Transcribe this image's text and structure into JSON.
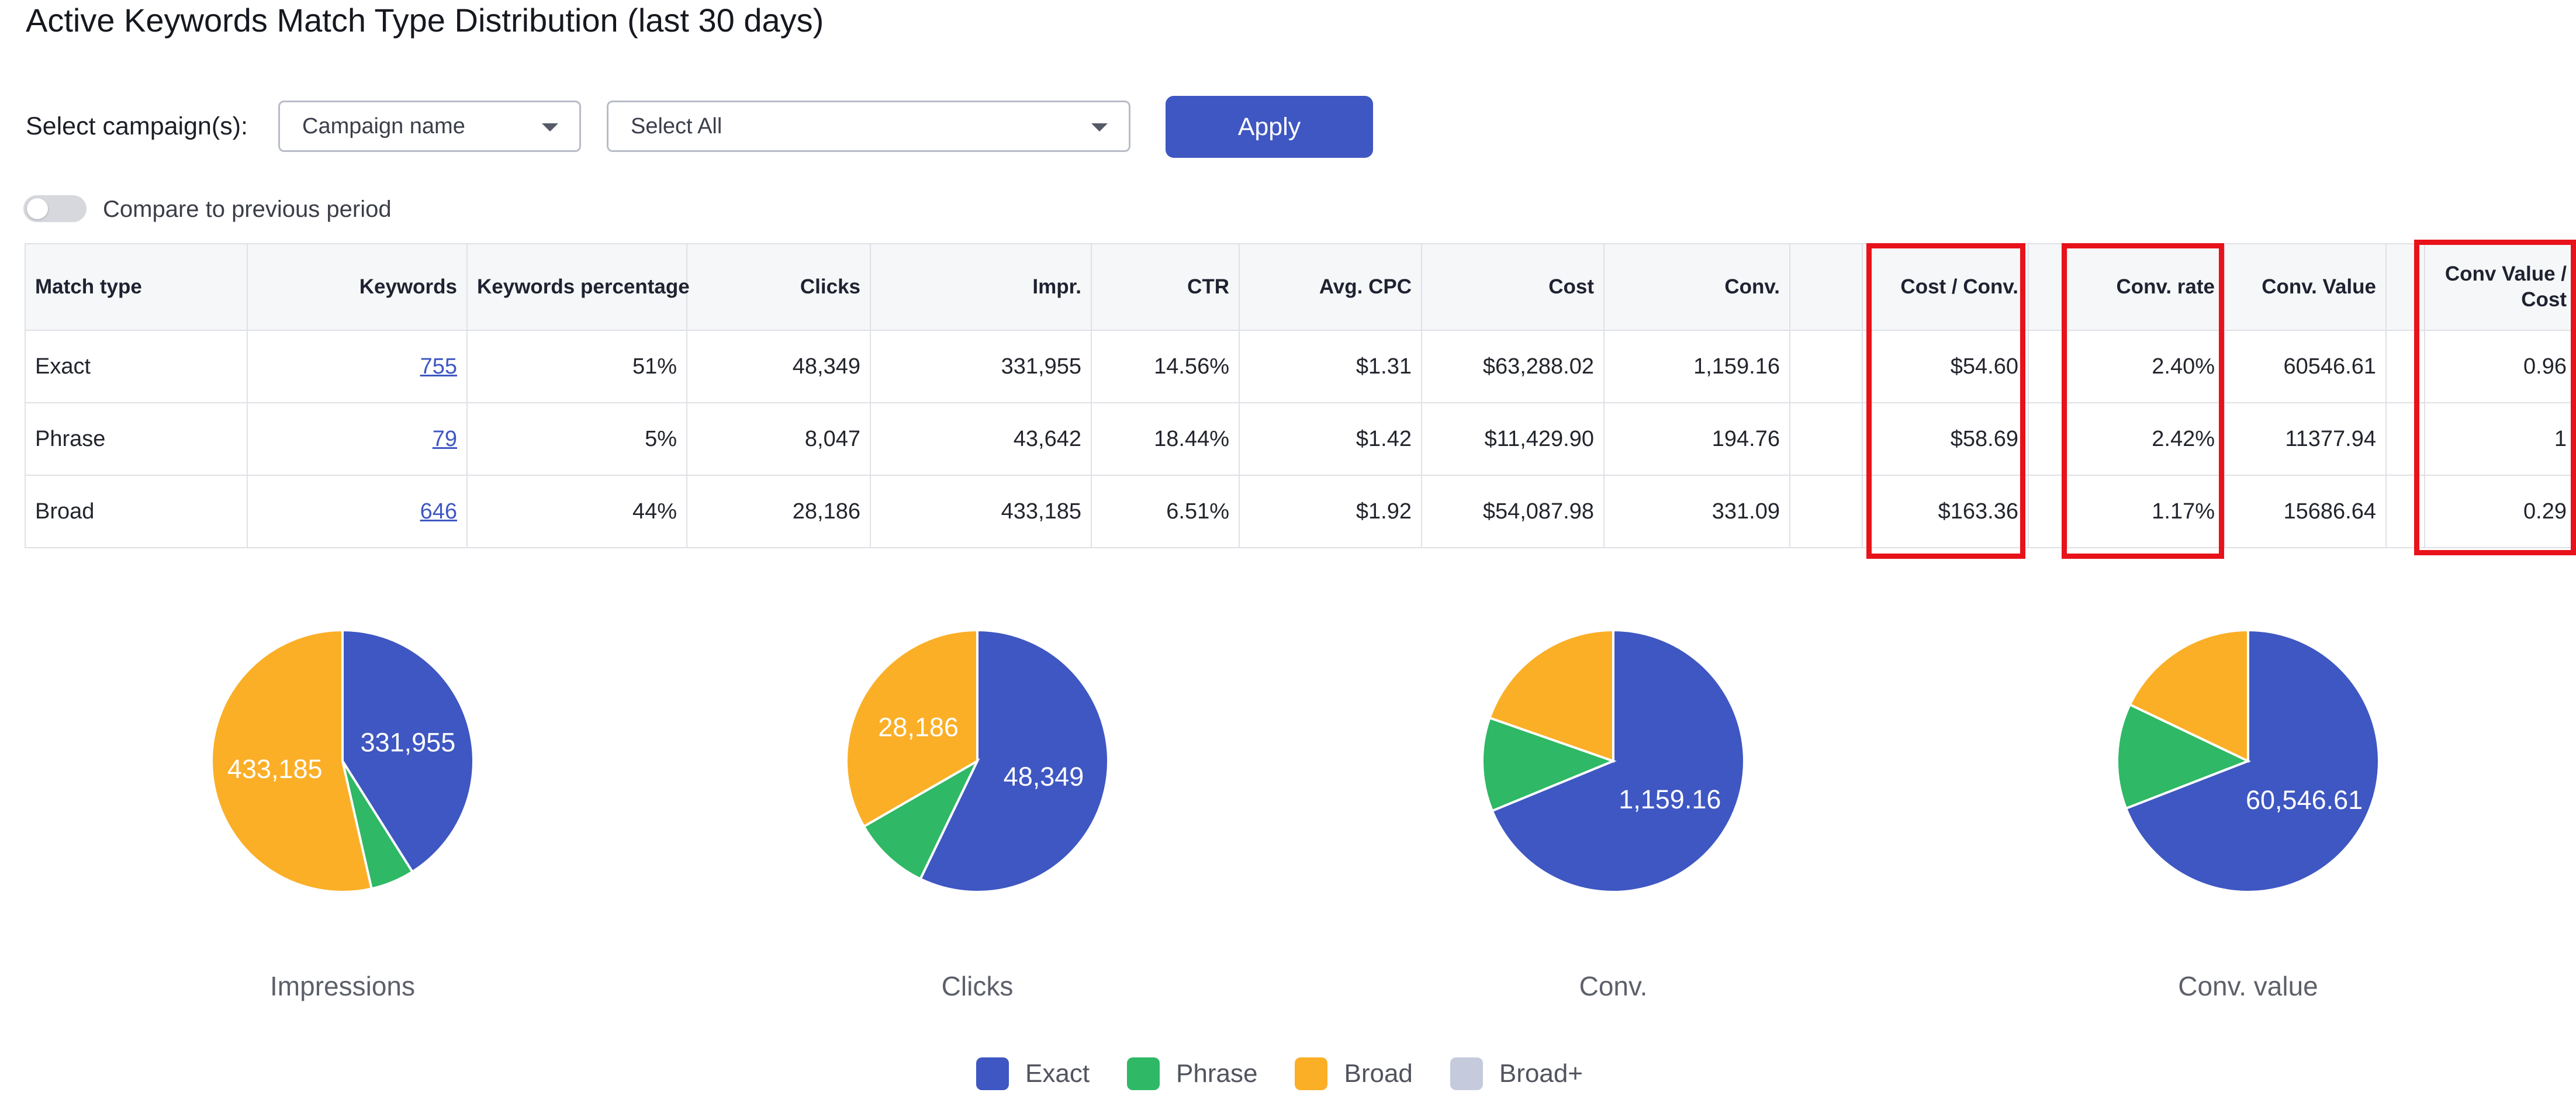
{
  "page": {
    "title": "Active Keywords Match Type Distribution (last 30 days)"
  },
  "filters": {
    "label": "Select campaign(s):",
    "campaign_select": "Campaign name",
    "value_select": "Select All",
    "apply_label": "Apply",
    "compare_label": "Compare to previous period",
    "compare_enabled": false
  },
  "table": {
    "headers": [
      "Match type",
      "Keywords",
      "Keywords percentage",
      "Clicks",
      "Impr.",
      "CTR",
      "Avg. CPC",
      "Cost",
      "Conv.",
      "",
      "Cost / Conv.",
      "",
      "Conv. rate",
      "Conv. Value",
      "",
      "Conv Value / Cost"
    ],
    "rows": [
      [
        "Exact",
        "755",
        "51%",
        "48,349",
        "331,955",
        "14.56%",
        "$1.31",
        "$63,288.02",
        "1,159.16",
        "",
        "$54.60",
        "",
        "2.40%",
        "60546.61",
        "",
        "0.96"
      ],
      [
        "Phrase",
        "79",
        "5%",
        "8,047",
        "43,642",
        "18.44%",
        "$1.42",
        "$11,429.90",
        "194.76",
        "",
        "$58.69",
        "",
        "2.42%",
        "11377.94",
        "",
        "1"
      ],
      [
        "Broad",
        "646",
        "44%",
        "28,186",
        "433,185",
        "6.51%",
        "$1.92",
        "$54,087.98",
        "331.09",
        "",
        "$163.36",
        "",
        "1.17%",
        "15686.64",
        "",
        "0.29"
      ]
    ]
  },
  "colors": {
    "exact": "#3f57c2",
    "phrase": "#2fb865",
    "broad": "#fbaf27",
    "broad_plus": "#c5cbdc",
    "highlight": "#e8121a"
  },
  "chart_data": [
    {
      "type": "pie",
      "title": "Impressions",
      "labels": [
        "Exact",
        "Phrase",
        "Broad"
      ],
      "values": [
        331955,
        43642,
        433185
      ],
      "data_labels": [
        "331,955",
        "",
        "433,185"
      ]
    },
    {
      "type": "pie",
      "title": "Clicks",
      "labels": [
        "Exact",
        "Phrase",
        "Broad"
      ],
      "values": [
        48349,
        8047,
        28186
      ],
      "data_labels": [
        "48,349",
        "",
        "28,186"
      ]
    },
    {
      "type": "pie",
      "title": "Conv.",
      "labels": [
        "Exact",
        "Phrase",
        "Broad"
      ],
      "values": [
        1159.16,
        194.76,
        331.09
      ],
      "data_labels": [
        "1,159.16",
        "",
        ""
      ]
    },
    {
      "type": "pie",
      "title": "Conv. value",
      "labels": [
        "Exact",
        "Phrase",
        "Broad"
      ],
      "values": [
        60546.61,
        11377.94,
        15686.64
      ],
      "data_labels": [
        "60,546.61",
        "",
        ""
      ]
    }
  ],
  "legend": [
    {
      "label": "Exact",
      "color": "#3f57c2"
    },
    {
      "label": "Phrase",
      "color": "#2fb865"
    },
    {
      "label": "Broad",
      "color": "#fbaf27"
    },
    {
      "label": "Broad+",
      "color": "#c5cbdc"
    }
  ]
}
